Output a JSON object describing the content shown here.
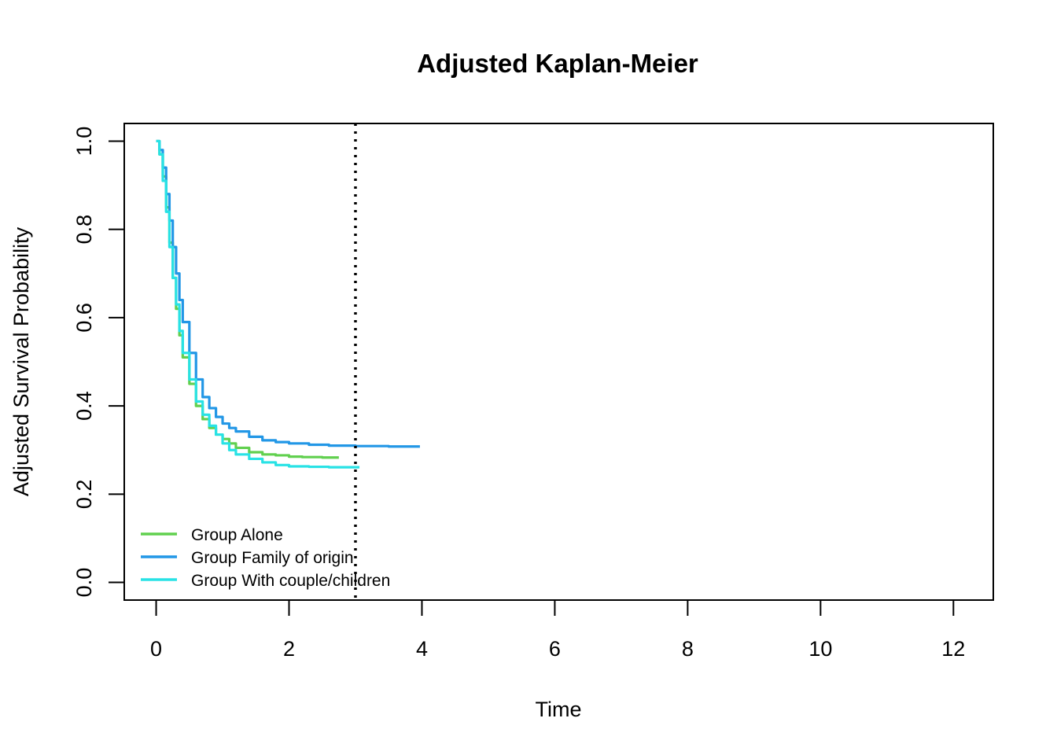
{
  "chart_data": {
    "type": "line",
    "title": "Adjusted Kaplan-Meier",
    "xlabel": "Time",
    "ylabel": "Adjusted Survival Probability",
    "xlim": [
      -0.48,
      12.6
    ],
    "ylim": [
      -0.04,
      1.04
    ],
    "x_ticks": [
      0,
      2,
      4,
      6,
      8,
      10,
      12
    ],
    "y_ticks": [
      0.0,
      0.2,
      0.4,
      0.6,
      0.8,
      1.0
    ],
    "x_tick_labels": [
      "0",
      "2",
      "4",
      "6",
      "8",
      "10",
      "12"
    ],
    "y_tick_labels": [
      "0.0",
      "0.2",
      "0.4",
      "0.6",
      "0.8",
      "1.0"
    ],
    "grid": false,
    "legend_position": "bottom-left",
    "vline": {
      "x": 3,
      "style": "dotted",
      "color": "#000000"
    },
    "series": [
      {
        "name": "Group Alone",
        "color": "#61D04F",
        "x": [
          0,
          0.05,
          0.1,
          0.15,
          0.2,
          0.25,
          0.3,
          0.35,
          0.4,
          0.5,
          0.6,
          0.7,
          0.8,
          0.9,
          1.0,
          1.1,
          1.2,
          1.4,
          1.6,
          1.8,
          2.0,
          2.2,
          2.5,
          2.75
        ],
        "y": [
          1.0,
          0.97,
          0.92,
          0.85,
          0.77,
          0.69,
          0.62,
          0.56,
          0.51,
          0.45,
          0.4,
          0.37,
          0.35,
          0.335,
          0.325,
          0.315,
          0.305,
          0.295,
          0.29,
          0.288,
          0.285,
          0.284,
          0.283,
          0.283
        ]
      },
      {
        "name": "Group Family of origin",
        "color": "#2297E6",
        "x": [
          0,
          0.05,
          0.1,
          0.15,
          0.2,
          0.25,
          0.3,
          0.35,
          0.4,
          0.5,
          0.6,
          0.7,
          0.8,
          0.9,
          1.0,
          1.1,
          1.2,
          1.4,
          1.6,
          1.8,
          2.0,
          2.3,
          2.6,
          3.0,
          3.5,
          3.97
        ],
        "y": [
          1.0,
          0.98,
          0.94,
          0.88,
          0.82,
          0.76,
          0.7,
          0.64,
          0.59,
          0.52,
          0.46,
          0.42,
          0.395,
          0.375,
          0.36,
          0.35,
          0.342,
          0.33,
          0.322,
          0.318,
          0.315,
          0.312,
          0.31,
          0.309,
          0.308,
          0.308
        ]
      },
      {
        "name": "Group With couple/children",
        "color": "#28E2E5",
        "x": [
          0,
          0.05,
          0.1,
          0.15,
          0.2,
          0.25,
          0.3,
          0.35,
          0.4,
          0.5,
          0.6,
          0.7,
          0.8,
          0.9,
          1.0,
          1.1,
          1.2,
          1.4,
          1.6,
          1.8,
          2.0,
          2.3,
          2.6,
          3.06
        ],
        "y": [
          1.0,
          0.97,
          0.91,
          0.84,
          0.76,
          0.69,
          0.63,
          0.57,
          0.52,
          0.46,
          0.41,
          0.38,
          0.355,
          0.335,
          0.315,
          0.3,
          0.29,
          0.28,
          0.272,
          0.266,
          0.263,
          0.262,
          0.261,
          0.261
        ]
      }
    ]
  }
}
